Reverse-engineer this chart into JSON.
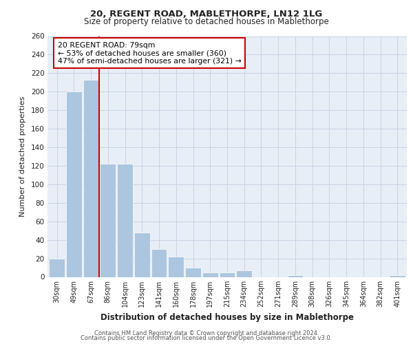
{
  "title1": "20, REGENT ROAD, MABLETHORPE, LN12 1LG",
  "title2": "Size of property relative to detached houses in Mablethorpe",
  "xlabel": "Distribution of detached houses by size in Mablethorpe",
  "ylabel": "Number of detached properties",
  "categories": [
    "30sqm",
    "49sqm",
    "67sqm",
    "86sqm",
    "104sqm",
    "123sqm",
    "141sqm",
    "160sqm",
    "178sqm",
    "197sqm",
    "215sqm",
    "234sqm",
    "252sqm",
    "271sqm",
    "289sqm",
    "308sqm",
    "326sqm",
    "345sqm",
    "364sqm",
    "382sqm",
    "401sqm"
  ],
  "values": [
    20,
    200,
    213,
    122,
    122,
    48,
    30,
    22,
    10,
    5,
    5,
    7,
    0,
    0,
    2,
    0,
    0,
    0,
    0,
    0,
    2
  ],
  "bar_color": "#adc6df",
  "bar_edge_color": "#8aaec8",
  "grid_color": "#c8d4e4",
  "bg_color": "#e8eef6",
  "property_line_x": 2.5,
  "annotation_line1": "20 REGENT ROAD: 79sqm",
  "annotation_line2": "← 53% of detached houses are smaller (360)",
  "annotation_line3": "47% of semi-detached houses are larger (321) →",
  "annotation_box_color": "#ffffff",
  "annotation_border_color": "#cc0000",
  "vline_color": "#cc0000",
  "footer1": "Contains HM Land Registry data © Crown copyright and database right 2024.",
  "footer2": "Contains public sector information licensed under the Open Government Licence v3.0.",
  "ylim": [
    0,
    260
  ],
  "yticks": [
    0,
    20,
    40,
    60,
    80,
    100,
    120,
    140,
    160,
    180,
    200,
    220,
    240,
    260
  ]
}
